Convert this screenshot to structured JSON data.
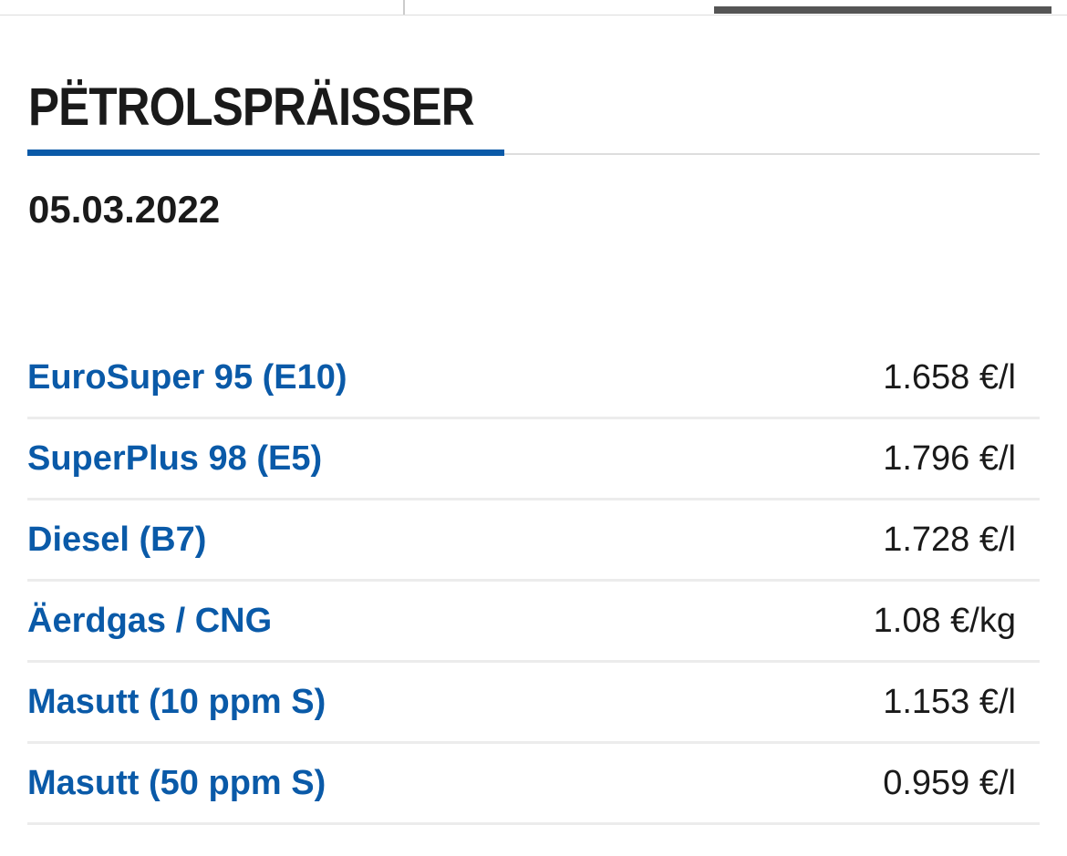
{
  "header": {
    "title": "PËTROLSPRÄISSER",
    "date": "05.03.2022"
  },
  "table": {
    "rows": [
      [
        "EuroSuper 95 (E10)",
        "1.658 €/l"
      ],
      [
        "SuperPlus 98 (E5)",
        "1.796 €/l"
      ],
      [
        "Diesel (B7)",
        "1.728 €/l"
      ],
      [
        "Äerdgas / CNG",
        "1.08 €/kg"
      ],
      [
        "Masutt (10 ppm S)",
        "1.153 €/l"
      ],
      [
        "Masutt (50 ppm S)",
        "0.959 €/l"
      ]
    ]
  }
}
